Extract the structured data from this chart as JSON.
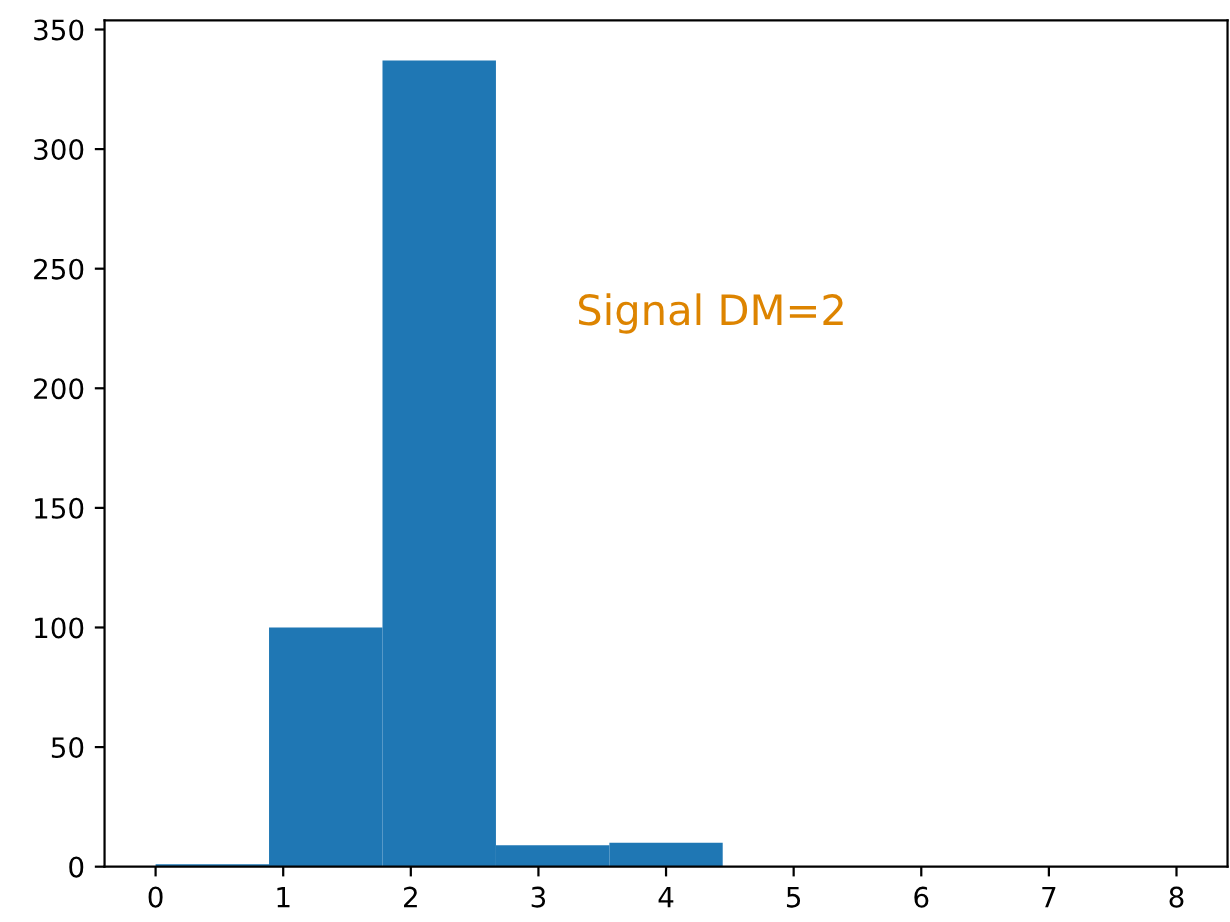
{
  "chart_data": {
    "type": "histogram",
    "bins": [
      0,
      0.889,
      1.778,
      2.667,
      3.556,
      4.444,
      5.333,
      6.222,
      7.111,
      8
    ],
    "values": [
      1,
      100,
      337,
      9,
      10,
      0,
      0,
      0,
      0
    ],
    "color": "#1f77b4",
    "xlim": [
      -0.4,
      8.4
    ],
    "xticks": [
      0,
      1,
      2,
      3,
      4,
      5,
      6,
      7,
      8
    ],
    "ylim": [
      0,
      353.85
    ],
    "yticks": [
      0,
      50,
      100,
      150,
      200,
      250,
      300,
      350
    ],
    "annotations": [
      "Signal DM=2"
    ]
  }
}
